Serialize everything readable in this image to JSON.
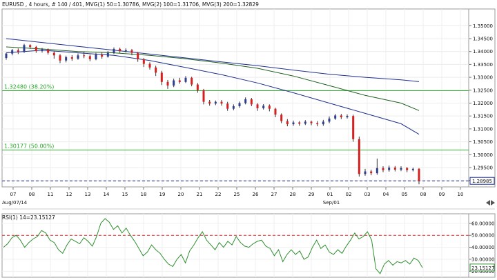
{
  "header": {
    "title": "EURUSD , 4 hours, # 140 / 401, MVG(1) 50=1.30786, MVG(2) 100=1.31706, MVG(3) 200=1.32829"
  },
  "chart_data": [
    {
      "type": "candlestick",
      "title": "EURUSD , 4 hours, # 140 / 401, MVG(1) 50=1.30786, MVG(2) 100=1.31706, MVG(3) 200=1.32829",
      "ylim": [
        1.2875,
        1.3565
      ],
      "yticks": [
        "1.35000",
        "1.34500",
        "1.34000",
        "1.33500",
        "1.33000",
        "1.32500",
        "1.32000",
        "1.31500",
        "1.31000",
        "1.30500",
        "1.30000",
        "1.29500",
        "1.29000"
      ],
      "ytick_values": [
        1.35,
        1.345,
        1.34,
        1.335,
        1.33,
        1.325,
        1.32,
        1.315,
        1.31,
        1.305,
        1.3,
        1.295,
        1.29
      ],
      "x_labels": [
        "07",
        "08",
        "11",
        "12",
        "13",
        "14",
        "15",
        "18",
        "19",
        "20",
        "21",
        "22",
        "25",
        "26",
        "27",
        "28",
        "29",
        "01",
        "02",
        "03",
        "04",
        "05",
        "08",
        "09",
        "10"
      ],
      "x_sublabels": [
        "Aug/07/14",
        "Sep/01"
      ],
      "current_price": "1.28985",
      "current_price_value": 1.28985,
      "fib_levels": [
        {
          "label": "1.32480  (38.20%)",
          "value": 1.3248
        },
        {
          "label": "1.30177  (50.00%)",
          "value": 1.30177
        }
      ],
      "moving_averages": [
        {
          "name": "MVG(1) 50",
          "color": "#1f2f8f",
          "value": 1.30786,
          "points": [
            [
              0,
              1.3395
            ],
            [
              6,
              1.3405
            ],
            [
              12,
              1.3395
            ],
            [
              18,
              1.3385
            ],
            [
              24,
              1.3365
            ],
            [
              30,
              1.3338
            ],
            [
              36,
              1.331
            ],
            [
              42,
              1.3278
            ],
            [
              48,
              1.324
            ],
            [
              54,
              1.32
            ],
            [
              60,
              1.316
            ],
            [
              66,
              1.312
            ],
            [
              72,
              1.3079
            ]
          ]
        },
        {
          "name": "MVG(2) 100",
          "color": "#1f5f1f",
          "value": 1.31706,
          "points": [
            [
              0,
              1.3418
            ],
            [
              6,
              1.341
            ],
            [
              12,
              1.34
            ],
            [
              18,
              1.3395
            ],
            [
              24,
              1.3385
            ],
            [
              30,
              1.3372
            ],
            [
              36,
              1.3355
            ],
            [
              42,
              1.3335
            ],
            [
              48,
              1.3305
            ],
            [
              54,
              1.3268
            ],
            [
              60,
              1.323
            ],
            [
              66,
              1.32
            ],
            [
              72,
              1.3171
            ]
          ]
        },
        {
          "name": "MVG(3) 200",
          "color": "#1f2f8f",
          "value": 1.32829,
          "points": [
            [
              0,
              1.345
            ],
            [
              6,
              1.3435
            ],
            [
              12,
              1.342
            ],
            [
              18,
              1.3405
            ],
            [
              24,
              1.339
            ],
            [
              30,
              1.3375
            ],
            [
              36,
              1.336
            ],
            [
              42,
              1.3345
            ],
            [
              48,
              1.3328
            ],
            [
              54,
              1.3312
            ],
            [
              60,
              1.33
            ],
            [
              66,
              1.329
            ],
            [
              72,
              1.3283
            ]
          ]
        }
      ],
      "candles": [
        [
          1.3375,
          1.3392,
          1.3368,
          1.3395
        ],
        [
          1.3392,
          1.3405,
          1.3385,
          1.341
        ],
        [
          1.3405,
          1.3398,
          1.339,
          1.3412
        ],
        [
          1.3398,
          1.3425,
          1.3395,
          1.343
        ],
        [
          1.3425,
          1.3418,
          1.341,
          1.3428
        ],
        [
          1.3418,
          1.3402,
          1.3395,
          1.3422
        ],
        [
          1.3402,
          1.3408,
          1.3396,
          1.3414
        ],
        [
          1.3408,
          1.3395,
          1.3388,
          1.3412
        ],
        [
          1.3395,
          1.3385,
          1.3372,
          1.34
        ],
        [
          1.3385,
          1.3365,
          1.3355,
          1.339
        ],
        [
          1.3365,
          1.3378,
          1.3358,
          1.3384
        ],
        [
          1.3378,
          1.3372,
          1.3364,
          1.3386
        ],
        [
          1.3372,
          1.3385,
          1.3368,
          1.3392
        ],
        [
          1.3385,
          1.3382,
          1.3374,
          1.34
        ],
        [
          1.3382,
          1.337,
          1.3362,
          1.3388
        ],
        [
          1.337,
          1.3388,
          1.3366,
          1.3395
        ],
        [
          1.3388,
          1.338,
          1.3372,
          1.3396
        ],
        [
          1.338,
          1.3395,
          1.3376,
          1.3402
        ],
        [
          1.3395,
          1.341,
          1.339,
          1.3416
        ],
        [
          1.341,
          1.3402,
          1.3395,
          1.3415
        ],
        [
          1.3402,
          1.3405,
          1.3396,
          1.3412
        ],
        [
          1.3405,
          1.3395,
          1.3385,
          1.341
        ],
        [
          1.3395,
          1.337,
          1.336,
          1.3398
        ],
        [
          1.337,
          1.3352,
          1.334,
          1.3375
        ],
        [
          1.3352,
          1.3338,
          1.333,
          1.3358
        ],
        [
          1.3338,
          1.3318,
          1.3305,
          1.3345
        ],
        [
          1.3318,
          1.3282,
          1.327,
          1.3325
        ],
        [
          1.3282,
          1.3268,
          1.3255,
          1.329
        ],
        [
          1.3268,
          1.3288,
          1.3262,
          1.3295
        ],
        [
          1.3288,
          1.3282,
          1.3275,
          1.3298
        ],
        [
          1.3282,
          1.3298,
          1.3278,
          1.3305
        ],
        [
          1.3298,
          1.3272,
          1.3265,
          1.3302
        ],
        [
          1.3272,
          1.325,
          1.324,
          1.3278
        ],
        [
          1.325,
          1.3205,
          1.3195,
          1.3255
        ],
        [
          1.3205,
          1.3198,
          1.319,
          1.3212
        ],
        [
          1.3198,
          1.3205,
          1.3192,
          1.321
        ],
        [
          1.3205,
          1.3198,
          1.319,
          1.3212
        ],
        [
          1.3198,
          1.3178,
          1.317,
          1.3205
        ],
        [
          1.3178,
          1.3188,
          1.3172,
          1.3195
        ],
        [
          1.3188,
          1.32,
          1.3182,
          1.3206
        ],
        [
          1.32,
          1.3215,
          1.3195,
          1.3222
        ],
        [
          1.3215,
          1.3195,
          1.3188,
          1.322
        ],
        [
          1.3195,
          1.318,
          1.317,
          1.32
        ],
        [
          1.318,
          1.319,
          1.3175,
          1.3196
        ],
        [
          1.319,
          1.3178,
          1.3168,
          1.3195
        ],
        [
          1.3178,
          1.3155,
          1.3145,
          1.3182
        ],
        [
          1.3155,
          1.313,
          1.3122,
          1.316
        ],
        [
          1.313,
          1.3118,
          1.311,
          1.3138
        ],
        [
          1.3118,
          1.3125,
          1.3112,
          1.3132
        ],
        [
          1.3125,
          1.312,
          1.3112,
          1.313
        ],
        [
          1.312,
          1.3128,
          1.3115,
          1.3134
        ],
        [
          1.3128,
          1.3122,
          1.3114,
          1.3132
        ],
        [
          1.3122,
          1.3118,
          1.311,
          1.313
        ],
        [
          1.3118,
          1.3128,
          1.3112,
          1.3135
        ],
        [
          1.3128,
          1.314,
          1.3122,
          1.3148
        ],
        [
          1.314,
          1.3152,
          1.3135,
          1.3158
        ],
        [
          1.3152,
          1.3145,
          1.3138,
          1.3158
        ],
        [
          1.3145,
          1.315,
          1.314,
          1.3156
        ],
        [
          1.315,
          1.306,
          1.305,
          1.3155
        ],
        [
          1.306,
          1.2925,
          1.2915,
          1.307
        ],
        [
          1.2925,
          1.2935,
          1.2918,
          1.2945
        ],
        [
          1.2935,
          1.2928,
          1.292,
          1.2942
        ],
        [
          1.2928,
          1.2948,
          1.2922,
          1.2985
        ],
        [
          1.2948,
          1.294,
          1.2932,
          1.2955
        ],
        [
          1.294,
          1.295,
          1.2934,
          1.2958
        ],
        [
          1.295,
          1.2942,
          1.2935,
          1.2956
        ],
        [
          1.2942,
          1.2948,
          1.2936,
          1.2955
        ],
        [
          1.2948,
          1.294,
          1.2932,
          1.2952
        ],
        [
          1.294,
          1.2945,
          1.2935,
          1.295
        ],
        [
          1.2945,
          1.2898,
          1.2885,
          1.2948
        ]
      ]
    },
    {
      "type": "line",
      "title": "RSI(1) 14=23.15127",
      "ylim": [
        15,
        68
      ],
      "yticks": [
        "60.00000",
        "50.00000",
        "40.00000",
        "30.00000",
        "20.00000"
      ],
      "ytick_values": [
        60,
        50,
        40,
        30,
        20
      ],
      "reference_line": 50,
      "current_value": "23.15127",
      "current_value_number": 23.15127,
      "series": [
        {
          "color": "#2f8f2f",
          "values": [
            40,
            43,
            48,
            50,
            46,
            40,
            44,
            47,
            49,
            54,
            52,
            46,
            44,
            38,
            35,
            42,
            47,
            45,
            43,
            48,
            45,
            41,
            49,
            60,
            64,
            61,
            55,
            58,
            52,
            56,
            50,
            45,
            39,
            33,
            36,
            42,
            38,
            35,
            30,
            26,
            24,
            30,
            34,
            27,
            37,
            42,
            48,
            53,
            46,
            42,
            38,
            44,
            40,
            45,
            42,
            49,
            44,
            41,
            40,
            43,
            45,
            46,
            41,
            39,
            33,
            38,
            28,
            34,
            38,
            34,
            37,
            30,
            32,
            40,
            46,
            39,
            42,
            36,
            34,
            38,
            35,
            41,
            46,
            52,
            47,
            49,
            53,
            46,
            22,
            18,
            26,
            29,
            25,
            28,
            27,
            29,
            26,
            31,
            29,
            23
          ]
        }
      ]
    }
  ]
}
